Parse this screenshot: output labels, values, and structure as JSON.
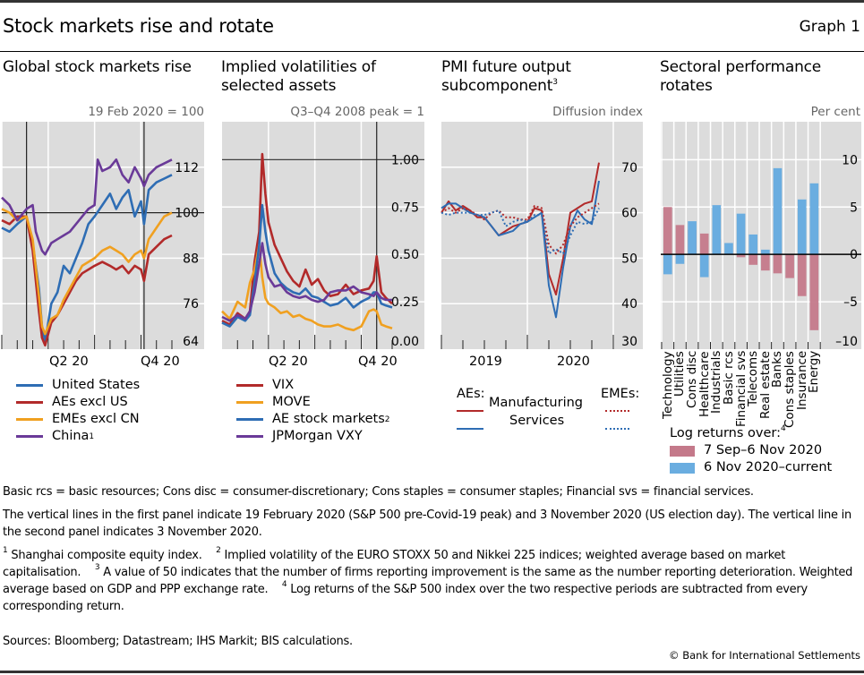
{
  "header": {
    "title": "Stock markets rise and rotate",
    "graph_label": "Graph 1"
  },
  "colors": {
    "panel_bg": "#dcdcdc",
    "grid": "#ffffff",
    "blue": "#2e6db4",
    "red": "#b22a2a",
    "orange": "#f0a020",
    "purple": "#6a3a98",
    "pink_bar": "#c4798a",
    "blue_bar": "#6aade0"
  },
  "chart_data": [
    {
      "type": "line",
      "title": "Global stock markets rise",
      "unit_label": "19 Feb 2020 = 100",
      "ylim": [
        64,
        124
      ],
      "yticks": [
        "112",
        "100",
        "88",
        "76",
        "64"
      ],
      "ytick_values": [
        112,
        100,
        88,
        76,
        64
      ],
      "xlim": [
        0,
        11
      ],
      "x_tick_labels": [
        {
          "label": "Q2 20",
          "x": 3
        },
        {
          "label": "Q4 20",
          "x": 9
        }
      ],
      "vlines": [
        1.6,
        9.2
      ],
      "hline": 100,
      "series": [
        {
          "name": "United States",
          "color_key": "blue",
          "x": [
            0,
            0.5,
            1,
            1.6,
            2.0,
            2.4,
            2.6,
            2.8,
            3.2,
            3.6,
            4.0,
            4.4,
            4.8,
            5.2,
            5.6,
            6.0,
            6.5,
            7.0,
            7.4,
            7.8,
            8.2,
            8.6,
            9.0,
            9.2,
            9.5,
            10.0,
            10.5,
            11.0
          ],
          "y": [
            96,
            95,
            97,
            99,
            92,
            80,
            70,
            66,
            76,
            79,
            86,
            84,
            88,
            92,
            97,
            99,
            102,
            105,
            101,
            104,
            106,
            99,
            103,
            97,
            106,
            108,
            109,
            110
          ]
        },
        {
          "name": "AEs excl US",
          "color_key": "red",
          "x": [
            0,
            0.5,
            1,
            1.6,
            2.0,
            2.4,
            2.6,
            2.8,
            3.2,
            3.6,
            4.0,
            4.4,
            4.8,
            5.2,
            5.6,
            6.0,
            6.5,
            7.0,
            7.4,
            7.8,
            8.2,
            8.6,
            9.0,
            9.2,
            9.5,
            10.0,
            10.5,
            11.0
          ],
          "y": [
            98,
            97,
            99,
            99,
            90,
            74,
            67,
            65,
            71,
            73,
            76,
            79,
            82,
            84,
            85,
            86,
            87,
            86,
            85,
            86,
            84,
            86,
            85,
            82,
            89,
            91,
            93,
            94
          ]
        },
        {
          "name": "EMEs excl CN",
          "color_key": "orange",
          "x": [
            0,
            0.5,
            1,
            1.6,
            2.0,
            2.4,
            2.6,
            2.8,
            3.2,
            3.6,
            4.0,
            4.4,
            4.8,
            5.2,
            5.6,
            6.0,
            6.5,
            7.0,
            7.4,
            7.8,
            8.2,
            8.6,
            9.0,
            9.2,
            9.5,
            10.0,
            10.5,
            11.0
          ],
          "y": [
            101,
            100,
            98,
            99,
            93,
            78,
            70,
            68,
            72,
            73,
            77,
            80,
            83,
            86,
            87,
            88,
            90,
            91,
            90,
            89,
            87,
            89,
            90,
            88,
            93,
            96,
            99,
            100
          ]
        },
        {
          "name": "China",
          "footnote": "1",
          "color_key": "purple",
          "x": [
            0,
            0.5,
            1,
            1.6,
            2.0,
            2.2,
            2.6,
            2.8,
            3.2,
            3.6,
            4.0,
            4.4,
            4.8,
            5.2,
            5.6,
            6.0,
            6.2,
            6.5,
            7.0,
            7.4,
            7.8,
            8.2,
            8.6,
            9.0,
            9.2,
            9.5,
            10.0,
            10.5,
            11.0
          ],
          "y": [
            104,
            102,
            98,
            101,
            102,
            95,
            90,
            89,
            92,
            93,
            94,
            95,
            97,
            99,
            101,
            102,
            114,
            111,
            112,
            114,
            110,
            108,
            112,
            109,
            107,
            110,
            112,
            113,
            114
          ]
        }
      ],
      "legend": [
        "United States",
        "AEs excl US",
        "EMEs excl CN",
        "China"
      ]
    },
    {
      "type": "line",
      "title": "Implied volatilities of selected assets",
      "unit_label": "Q3–Q4 2008 peak = 1",
      "ylim": [
        0,
        1.2
      ],
      "yticks": [
        "1.00",
        "0.75",
        "0.50",
        "0.25",
        "0.00"
      ],
      "ytick_values": [
        1.0,
        0.75,
        0.5,
        0.25,
        0
      ],
      "xlim": [
        0,
        11
      ],
      "x_tick_labels": [
        {
          "label": "Q2 20",
          "x": 3
        },
        {
          "label": "Q4 20",
          "x": 9
        }
      ],
      "vlines": [
        10.0
      ],
      "hline": 1.0,
      "series": [
        {
          "name": "VIX",
          "color_key": "red",
          "x": [
            0,
            0.5,
            1.0,
            1.5,
            1.8,
            2.1,
            2.4,
            2.6,
            2.8,
            3.0,
            3.4,
            3.8,
            4.2,
            4.6,
            5.0,
            5.4,
            5.8,
            6.2,
            6.6,
            7.0,
            7.5,
            8.0,
            8.5,
            9.0,
            9.5,
            9.8,
            10.0,
            10.3,
            10.6,
            11.0
          ],
          "y": [
            0.15,
            0.13,
            0.19,
            0.16,
            0.2,
            0.46,
            0.62,
            1.03,
            0.82,
            0.67,
            0.55,
            0.48,
            0.41,
            0.36,
            0.33,
            0.42,
            0.34,
            0.37,
            0.31,
            0.28,
            0.29,
            0.34,
            0.29,
            0.31,
            0.32,
            0.36,
            0.49,
            0.3,
            0.27,
            0.24
          ]
        },
        {
          "name": "MOVE",
          "color_key": "orange",
          "x": [
            0,
            0.5,
            1.0,
            1.5,
            1.8,
            2.1,
            2.4,
            2.6,
            2.8,
            3.0,
            3.4,
            3.8,
            4.2,
            4.6,
            5.0,
            5.4,
            5.8,
            6.2,
            6.6,
            7.0,
            7.5,
            8.0,
            8.5,
            9.0,
            9.5,
            9.8,
            10.0,
            10.3,
            10.6,
            11.0
          ],
          "y": [
            0.2,
            0.16,
            0.25,
            0.22,
            0.35,
            0.42,
            0.55,
            0.38,
            0.27,
            0.24,
            0.22,
            0.19,
            0.2,
            0.17,
            0.18,
            0.16,
            0.15,
            0.13,
            0.12,
            0.12,
            0.13,
            0.11,
            0.1,
            0.12,
            0.2,
            0.21,
            0.2,
            0.13,
            0.12,
            0.11
          ]
        },
        {
          "name": "AE stock markets",
          "footnote": "2",
          "color_key": "blue",
          "x": [
            0,
            0.5,
            1.0,
            1.5,
            1.8,
            2.1,
            2.4,
            2.6,
            2.8,
            3.0,
            3.4,
            3.8,
            4.2,
            4.6,
            5.0,
            5.4,
            5.8,
            6.2,
            6.6,
            7.0,
            7.5,
            8.0,
            8.5,
            9.0,
            9.5,
            9.8,
            10.0,
            10.3,
            10.6,
            11.0
          ],
          "y": [
            0.14,
            0.12,
            0.17,
            0.15,
            0.18,
            0.35,
            0.55,
            0.76,
            0.62,
            0.52,
            0.4,
            0.35,
            0.32,
            0.3,
            0.29,
            0.32,
            0.28,
            0.27,
            0.25,
            0.23,
            0.24,
            0.27,
            0.22,
            0.25,
            0.27,
            0.3,
            0.3,
            0.24,
            0.23,
            0.22
          ]
        },
        {
          "name": "JPMorgan VXY",
          "color_key": "purple",
          "x": [
            0,
            0.5,
            1.0,
            1.5,
            1.8,
            2.1,
            2.4,
            2.6,
            2.8,
            3.0,
            3.4,
            3.8,
            4.2,
            4.6,
            5.0,
            5.4,
            5.8,
            6.2,
            6.6,
            7.0,
            7.5,
            8.0,
            8.5,
            9.0,
            9.5,
            9.8,
            10.0,
            10.3,
            10.6,
            11.0
          ],
          "y": [
            0.17,
            0.15,
            0.18,
            0.16,
            0.2,
            0.3,
            0.45,
            0.56,
            0.45,
            0.38,
            0.33,
            0.34,
            0.3,
            0.28,
            0.27,
            0.28,
            0.26,
            0.25,
            0.26,
            0.3,
            0.31,
            0.31,
            0.33,
            0.3,
            0.29,
            0.28,
            0.3,
            0.27,
            0.26,
            0.26
          ]
        }
      ],
      "legend": [
        "VIX",
        "MOVE",
        "AE stock markets",
        "JPMorgan VXY"
      ]
    },
    {
      "type": "line",
      "title": "PMI future output subcomponent",
      "title_footnote": "3",
      "unit_label": "Diffusion index",
      "ylim": [
        30,
        80
      ],
      "yticks": [
        "70",
        "60",
        "50",
        "40",
        "30"
      ],
      "ytick_values": [
        70,
        60,
        50,
        40,
        30
      ],
      "xlim": [
        0,
        24
      ],
      "x_tick_labels": [
        {
          "label": "2019",
          "x": 6
        },
        {
          "label": "2020",
          "x": 18
        }
      ],
      "year_dividers": [
        12,
        24
      ],
      "series": [
        {
          "name": "AEs Manufacturing",
          "color_key": "red",
          "style": "solid",
          "x": [
            0,
            1,
            2,
            3,
            4,
            5,
            6,
            7,
            8,
            9,
            10,
            11,
            12,
            13,
            14,
            15,
            16,
            17,
            18,
            19,
            20,
            21,
            22
          ],
          "y": [
            60,
            62.5,
            60.5,
            61.5,
            60.5,
            59,
            59,
            57,
            55,
            56,
            57,
            57.5,
            58,
            61,
            60.5,
            46.5,
            42,
            50,
            60,
            61,
            62,
            62.5,
            71
          ]
        },
        {
          "name": "AEs Services",
          "color_key": "blue",
          "style": "solid",
          "x": [
            0,
            1,
            2,
            3,
            4,
            5,
            6,
            7,
            8,
            9,
            10,
            11,
            12,
            13,
            14,
            15,
            16,
            17,
            18,
            19,
            20,
            21,
            22
          ],
          "y": [
            61,
            62,
            62,
            61,
            60,
            59.5,
            59,
            57,
            55,
            55.5,
            56,
            57.5,
            58,
            59,
            60,
            44,
            37,
            48,
            57,
            60.5,
            58.5,
            57.5,
            67
          ]
        },
        {
          "name": "EMEs Manufacturing",
          "color_key": "red",
          "style": "dotted",
          "x": [
            0,
            1,
            2,
            3,
            4,
            5,
            6,
            7,
            8,
            9,
            10,
            11,
            12,
            13,
            14,
            15,
            16,
            17,
            18,
            19,
            20,
            21,
            22
          ],
          "y": [
            60,
            61,
            60,
            61,
            60.5,
            59.5,
            58.5,
            60,
            60.5,
            59,
            59,
            58.5,
            58.5,
            61.5,
            61,
            53,
            51,
            53,
            57,
            59,
            60,
            61,
            62
          ]
        },
        {
          "name": "EMEs Services",
          "color_key": "blue",
          "style": "dotted",
          "x": [
            0,
            1,
            2,
            3,
            4,
            5,
            6,
            7,
            8,
            9,
            10,
            11,
            12,
            13,
            14,
            15,
            16,
            17,
            18,
            19,
            20,
            21,
            22
          ],
          "y": [
            60,
            59.5,
            60,
            60,
            60,
            59.5,
            59.5,
            60,
            60.5,
            57,
            58,
            58.5,
            58,
            59.5,
            59.5,
            51,
            52,
            51,
            55,
            58,
            57.5,
            58,
            61
          ]
        }
      ],
      "legend": {
        "aes_label": "AEs:",
        "emes_label": "EMEs:",
        "rows": [
          "Manufacturing",
          "Services"
        ]
      }
    },
    {
      "type": "bar",
      "title": "Sectoral performance rotates",
      "unit_label": "Per cent",
      "ylim": [
        -10,
        14
      ],
      "yticks": [
        "10",
        "5",
        "0",
        "–5",
        "–10"
      ],
      "ytick_values": [
        10,
        5,
        0,
        -5,
        -10
      ],
      "categories": [
        "Technology",
        "Utilities",
        "Cons disc",
        "Healthcare",
        "Industrials",
        "Basic rcs",
        "Financial svs",
        "Telecoms",
        "Real estate",
        "Banks",
        "Cons staples",
        "Insurance",
        "Energy"
      ],
      "series": [
        {
          "name": "7 Sep–6 Nov 2020",
          "color_key": "pink_bar",
          "values": [
            5.0,
            3.1,
            2.6,
            2.2,
            1.6,
            0.0,
            -0.3,
            -1.1,
            -1.7,
            -2.0,
            -2.5,
            -4.4,
            -8.0
          ]
        },
        {
          "name": "6 Nov 2020–current",
          "color_key": "blue_bar",
          "values": [
            -2.1,
            -1.0,
            3.5,
            -2.4,
            5.2,
            1.2,
            4.3,
            2.1,
            0.5,
            9.1,
            0.0,
            5.8,
            7.5
          ]
        }
      ],
      "legend_title": "Log returns over:",
      "legend_title_footnote": "4"
    }
  ],
  "panels": {
    "p1": {
      "title": "Global stock markets rise",
      "unit": "19 Feb 2020 = 100",
      "xlabels": [
        "Q2 20",
        "Q4 20"
      ]
    },
    "p2": {
      "title_l1": "Implied volatilities of",
      "title_l2": "selected assets",
      "unit": "Q3–Q4 2008 peak = 1",
      "xlabels": [
        "Q2 20",
        "Q4 20"
      ]
    },
    "p3": {
      "title_l1": "PMI future output",
      "title_l2": "subcomponent",
      "title_fn": "3",
      "unit": "Diffusion index",
      "xlabels": [
        "2019",
        "2020"
      ]
    },
    "p4": {
      "title_l1": "Sectoral performance",
      "title_l2": "rotates",
      "unit": "Per cent"
    }
  },
  "legends": {
    "p1": [
      {
        "label": "United States",
        "fn": ""
      },
      {
        "label": "AEs excl US",
        "fn": ""
      },
      {
        "label": "EMEs excl CN",
        "fn": ""
      },
      {
        "label": "China",
        "fn": "1"
      }
    ],
    "p2": [
      {
        "label": "VIX",
        "fn": ""
      },
      {
        "label": "MOVE",
        "fn": ""
      },
      {
        "label": "AE stock markets",
        "fn": "2"
      },
      {
        "label": "JPMorgan VXY",
        "fn": ""
      }
    ],
    "p3": {
      "aes": "AEs:",
      "emes": "EMEs:",
      "manufacturing": "Manufacturing",
      "services": "Services"
    },
    "p4": {
      "title": "Log returns over:",
      "fn": "4",
      "items": [
        "7 Sep–6 Nov 2020",
        "6 Nov 2020–current"
      ]
    }
  },
  "notes": {
    "abbrev": "Basic rcs = basic resources; Cons disc = consumer-discretionary; Cons staples = consumer staples; Financial svs = financial services.",
    "vlines": "The vertical lines in the first panel indicate 19 February 2020 (S&P 500 pre-Covid-19 peak) and 3 November 2020 (US election day). The vertical line in the second panel indicates 3 November 2020.",
    "fn1_num": "1",
    "fn1": "Shanghai composite equity index.",
    "fn2_num": "2",
    "fn2": "Implied volatility of the EURO STOXX 50 and Nikkei 225 indices; weighted average based on market capitalisation.",
    "fn3_num": "3",
    "fn3": "A value of 50 indicates that the number of firms reporting improvement is the same as the number reporting deterioration. Weighted average based on GDP and PPP exchange rate.",
    "fn4_num": "4",
    "fn4": "Log returns of the S&P 500 index over the two respective periods are subtracted from every corresponding return.",
    "sources": "Sources: Bloomberg; Datastream; IHS Markit; BIS calculations.",
    "copyright": "© Bank for International Settlements"
  }
}
